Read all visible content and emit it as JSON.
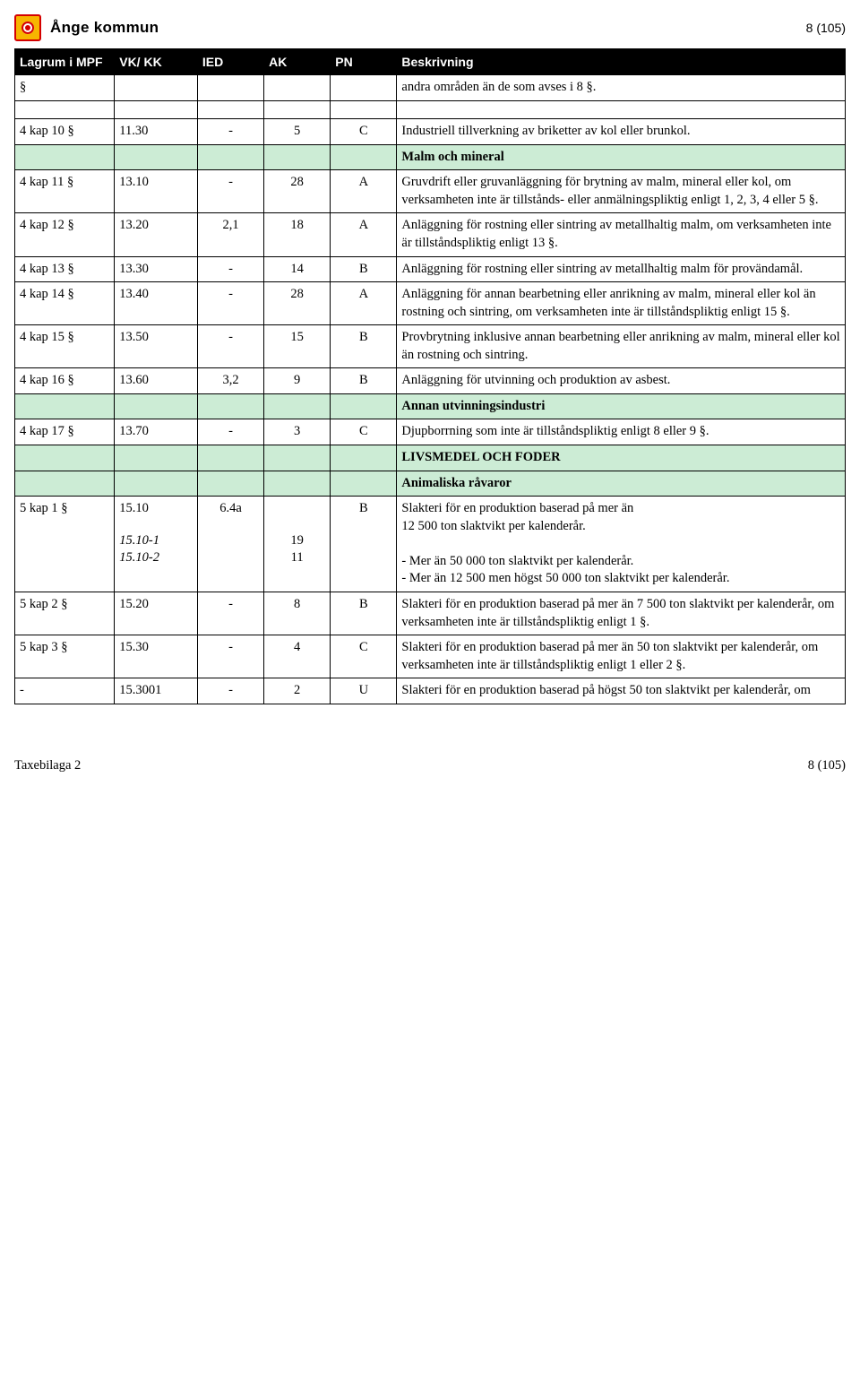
{
  "meta": {
    "brand": "Ånge kommun",
    "page_label": "8 (105)"
  },
  "footer": {
    "left": "Taxebilaga 2",
    "right": "8 (105)"
  },
  "colors": {
    "header_bg": "#000000",
    "header_fg": "#ffffff",
    "section_bg": "#ccecd5",
    "border": "#000000",
    "logo_bg": "#f7b500",
    "logo_border": "#d40000"
  },
  "columns": [
    "Lagrum i MPF",
    "VK/ KK",
    "IED",
    "AK",
    "PN",
    "Beskrivning"
  ],
  "rows": [
    {
      "type": "data",
      "lagrum": "§",
      "vkk": "",
      "ied": "",
      "ak": "",
      "pn": "",
      "beskr": "andra områden än de som avses i 8 §."
    },
    {
      "type": "spacer"
    },
    {
      "type": "data",
      "lagrum": "4 kap 10 §",
      "vkk": "11.30",
      "ied": "-",
      "ak": "5",
      "pn": "C",
      "beskr": "Industriell tillverkning av briketter av kol eller brunkol."
    },
    {
      "type": "section",
      "title": "Malm och mineral"
    },
    {
      "type": "data",
      "lagrum": "4 kap 11 §",
      "vkk": "13.10",
      "ied": "-",
      "ak": "28",
      "pn": "A",
      "beskr": "Gruvdrift eller gruvanläggning för brytning av malm, mineral eller kol, om verksamheten inte är tillstånds- eller anmälningspliktig enligt 1, 2, 3, 4 eller 5 §."
    },
    {
      "type": "data",
      "lagrum": "4 kap 12 §",
      "vkk": "13.20",
      "ied": "2,1",
      "ak": "18",
      "pn": "A",
      "beskr": "Anläggning för rostning eller sintring av metallhaltig malm, om verksamheten inte är tillståndspliktig enligt 13 §."
    },
    {
      "type": "data",
      "lagrum": "4 kap 13 §",
      "vkk": "13.30",
      "ied": "-",
      "ak": "14",
      "pn": "B",
      "beskr": "Anläggning för rostning eller sintring av metallhaltig malm för provändamål."
    },
    {
      "type": "data",
      "lagrum": "4 kap 14 §",
      "vkk": "13.40",
      "ied": "-",
      "ak": "28",
      "pn": "A",
      "beskr": "Anläggning för annan bearbetning eller anrikning av malm, mineral eller kol än rostning och sintring, om verksamheten inte är tillståndspliktig enligt 15 §."
    },
    {
      "type": "data",
      "lagrum": "4 kap 15 §",
      "vkk": "13.50",
      "ied": "-",
      "ak": "15",
      "pn": "B",
      "beskr": "Provbrytning inklusive annan bearbetning eller anrikning av malm, mineral eller kol än rostning och sintring."
    },
    {
      "type": "data",
      "lagrum": "4 kap 16 §",
      "vkk": "13.60",
      "ied": "3,2",
      "ak": "9",
      "pn": "B",
      "beskr": "Anläggning för utvinning och produktion av asbest."
    },
    {
      "type": "section",
      "title": "Annan utvinningsindustri"
    },
    {
      "type": "data",
      "lagrum": "4 kap 17 §",
      "vkk": "13.70",
      "ied": "-",
      "ak": "3",
      "pn": "C",
      "beskr": "Djupborrning som inte är tillståndspliktig enligt 8 eller 9 §."
    },
    {
      "type": "section",
      "title": "LIVSMEDEL OCH FODER"
    },
    {
      "type": "section",
      "title": "Animaliska råvaror"
    },
    {
      "type": "data-complex",
      "lagrum": "5 kap 1 §",
      "vkk": [
        "15.10",
        "",
        "15.10-1",
        "15.10-2"
      ],
      "vkk_italic": [
        false,
        false,
        true,
        true
      ],
      "ied": "6.4a",
      "ak": [
        "",
        "",
        "19",
        "11"
      ],
      "pn": "B",
      "beskr": "Slakteri för en produktion baserad på mer än\n12 500 ton slaktvikt per kalenderår.\n\n- Mer än 50 000 ton slaktvikt per kalenderår.\n- Mer än 12 500 men högst 50 000 ton slaktvikt  per kalenderår."
    },
    {
      "type": "data",
      "lagrum": "5 kap 2 §",
      "vkk": "15.20",
      "ied": "-",
      "ak": "8",
      "pn": "B",
      "beskr": "Slakteri för en produktion baserad på mer än 7 500 ton slaktvikt per kalenderår, om verksamheten inte är tillståndspliktig enligt 1 §."
    },
    {
      "type": "data",
      "lagrum": "5 kap 3 §",
      "vkk": "15.30",
      "ied": "-",
      "ak": "4",
      "pn": "C",
      "beskr": "Slakteri för en produktion baserad på mer än 50 ton slaktvikt per kalenderår, om verksamheten inte är tillståndspliktig enligt 1 eller 2 §."
    },
    {
      "type": "data",
      "lagrum": "-",
      "vkk": "15.3001",
      "ied": "-",
      "ak": "2",
      "pn": "U",
      "beskr": "Slakteri för en produktion baserad på högst 50 ton slaktvikt per kalenderår, om"
    }
  ]
}
